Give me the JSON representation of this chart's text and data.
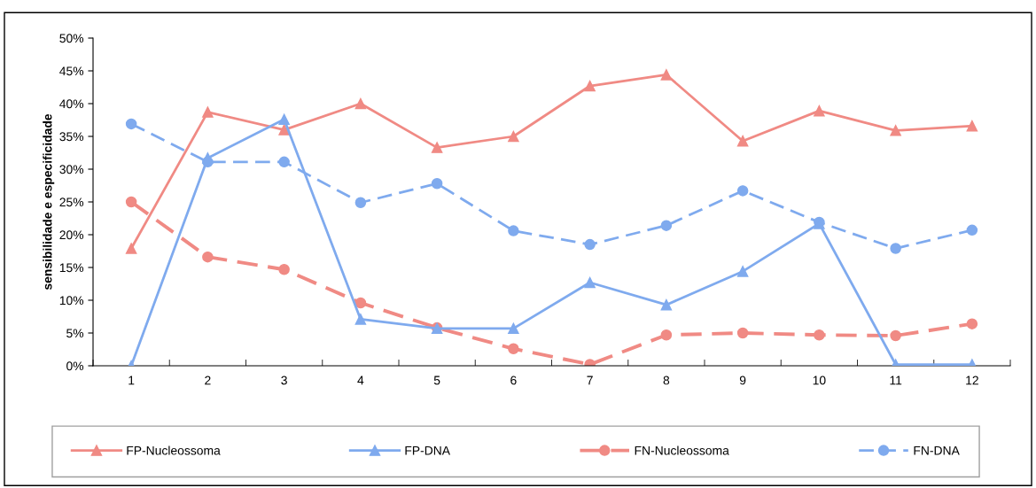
{
  "chart_data": {
    "type": "line",
    "ylabel": "sensibilidade e especificidade",
    "categories": [
      "1",
      "2",
      "3",
      "4",
      "5",
      "6",
      "7",
      "8",
      "9",
      "10",
      "11",
      "12"
    ],
    "series": [
      {
        "name": "FP-Nucleossoma",
        "color": "#f08a84",
        "marker": "triangle",
        "line_style": "solid",
        "values": [
          17.9,
          38.7,
          36.0,
          40.0,
          33.3,
          35.0,
          42.7,
          44.4,
          34.3,
          38.9,
          35.9,
          36.6
        ]
      },
      {
        "name": "FP-DNA",
        "color": "#7faaee",
        "marker": "triangle",
        "line_style": "solid",
        "values": [
          0,
          31.7,
          37.6,
          7.1,
          5.7,
          5.7,
          12.7,
          9.3,
          14.4,
          21.7,
          0.2,
          0.2
        ]
      },
      {
        "name": "FN-Nucleossoma",
        "color": "#f08a84",
        "marker": "circle",
        "line_style": "dashed",
        "values": [
          25.0,
          16.6,
          14.7,
          9.6,
          5.8,
          2.6,
          0.2,
          4.7,
          5.0,
          4.7,
          4.6,
          6.4
        ]
      },
      {
        "name": "FN-DNA",
        "color": "#7faaee",
        "marker": "circle",
        "line_style": "dashed",
        "values": [
          36.9,
          31.1,
          31.1,
          24.9,
          27.8,
          20.6,
          18.5,
          21.4,
          26.7,
          21.9,
          17.9,
          20.7
        ]
      }
    ],
    "ylim": [
      0,
      50
    ],
    "yticks": [
      {
        "value": 0,
        "label": "0%"
      },
      {
        "value": 5,
        "label": "5%"
      },
      {
        "value": 10,
        "label": "10%"
      },
      {
        "value": 15,
        "label": "15%"
      },
      {
        "value": 20,
        "label": "20%"
      },
      {
        "value": 25,
        "label": "25%"
      },
      {
        "value": 30,
        "label": "30%"
      },
      {
        "value": 35,
        "label": "35%"
      },
      {
        "value": 40,
        "label": "40%"
      },
      {
        "value": 45,
        "label": "45%"
      },
      {
        "value": 50,
        "label": "50%"
      }
    ],
    "grid": false,
    "legend": "bottom"
  }
}
